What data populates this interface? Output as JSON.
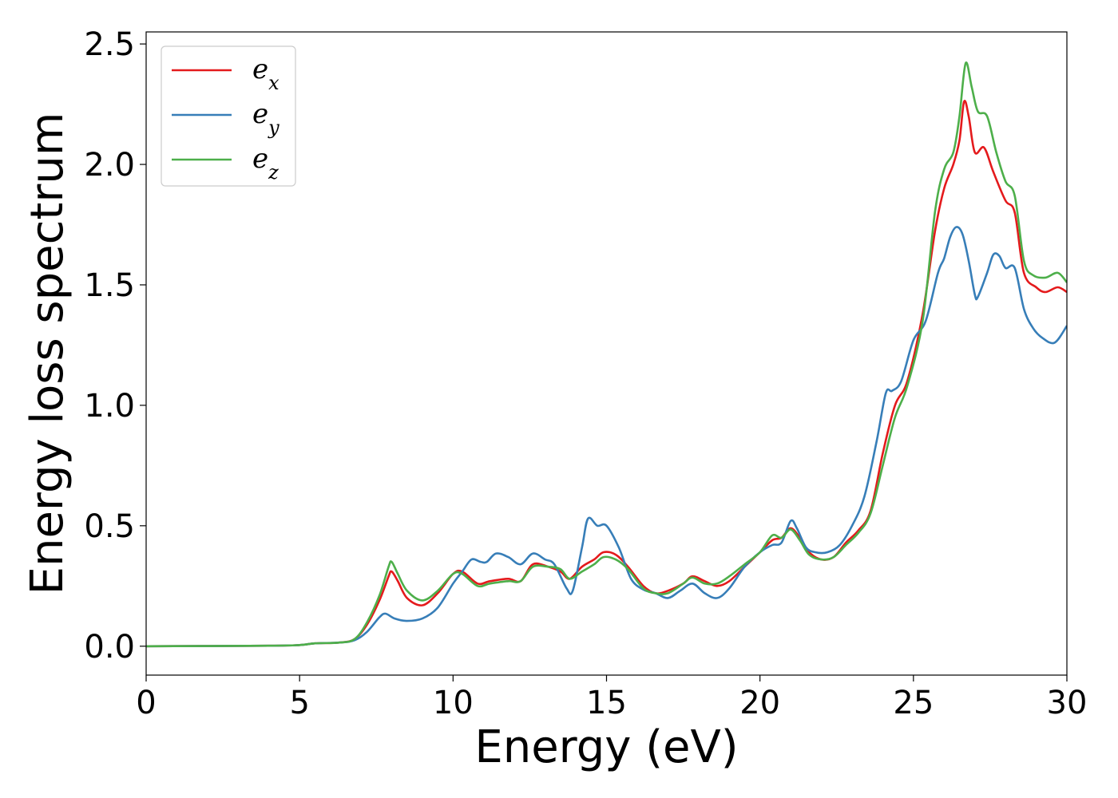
{
  "chart_data": {
    "type": "line",
    "title": "",
    "xlabel": "Energy (eV)",
    "ylabel": "Energy loss spectrum",
    "xlim": [
      0,
      30
    ],
    "ylim": [
      -0.12,
      2.55
    ],
    "xticks": [
      0,
      5,
      10,
      15,
      20,
      25,
      30
    ],
    "xtick_labels": [
      "0",
      "5",
      "10",
      "15",
      "20",
      "25",
      "30"
    ],
    "yticks": [
      0.0,
      0.5,
      1.0,
      1.5,
      2.0,
      2.5
    ],
    "ytick_labels": [
      "0.0",
      "0.5",
      "1.0",
      "1.5",
      "2.0",
      "2.5"
    ],
    "grid": false,
    "legend_position": "top-left",
    "series": [
      {
        "name": "e_x",
        "base": "e",
        "sub": "x",
        "color": "#e41a1c",
        "points": [
          [
            0,
            0
          ],
          [
            4,
            0.002
          ],
          [
            5,
            0.005
          ],
          [
            5.5,
            0.012
          ],
          [
            6.3,
            0.015
          ],
          [
            6.8,
            0.03
          ],
          [
            7.2,
            0.09
          ],
          [
            7.6,
            0.19
          ],
          [
            7.9,
            0.29
          ],
          [
            8.0,
            0.31
          ],
          [
            8.2,
            0.27
          ],
          [
            8.5,
            0.2
          ],
          [
            9.0,
            0.17
          ],
          [
            9.5,
            0.22
          ],
          [
            10.0,
            0.3
          ],
          [
            10.3,
            0.31
          ],
          [
            10.8,
            0.26
          ],
          [
            11.2,
            0.27
          ],
          [
            11.8,
            0.28
          ],
          [
            12.2,
            0.27
          ],
          [
            12.6,
            0.34
          ],
          [
            13.1,
            0.33
          ],
          [
            13.5,
            0.31
          ],
          [
            13.8,
            0.28
          ],
          [
            14.2,
            0.33
          ],
          [
            14.6,
            0.36
          ],
          [
            14.9,
            0.39
          ],
          [
            15.3,
            0.38
          ],
          [
            15.7,
            0.33
          ],
          [
            16.2,
            0.25
          ],
          [
            16.6,
            0.22
          ],
          [
            17.0,
            0.23
          ],
          [
            17.5,
            0.26
          ],
          [
            17.8,
            0.29
          ],
          [
            18.2,
            0.27
          ],
          [
            18.6,
            0.25
          ],
          [
            19.0,
            0.27
          ],
          [
            19.5,
            0.33
          ],
          [
            20.0,
            0.39
          ],
          [
            20.4,
            0.44
          ],
          [
            20.7,
            0.45
          ],
          [
            21.0,
            0.49
          ],
          [
            21.3,
            0.45
          ],
          [
            21.6,
            0.39
          ],
          [
            22.0,
            0.36
          ],
          [
            22.4,
            0.37
          ],
          [
            22.8,
            0.43
          ],
          [
            23.2,
            0.48
          ],
          [
            23.6,
            0.56
          ],
          [
            24.0,
            0.8
          ],
          [
            24.4,
            1.0
          ],
          [
            24.8,
            1.1
          ],
          [
            25.3,
            1.38
          ],
          [
            25.7,
            1.72
          ],
          [
            26.0,
            1.9
          ],
          [
            26.3,
            2.0
          ],
          [
            26.5,
            2.1
          ],
          [
            26.65,
            2.26
          ],
          [
            26.8,
            2.2
          ],
          [
            27.0,
            2.05
          ],
          [
            27.3,
            2.07
          ],
          [
            27.6,
            1.97
          ],
          [
            28.0,
            1.85
          ],
          [
            28.3,
            1.8
          ],
          [
            28.6,
            1.55
          ],
          [
            29.0,
            1.49
          ],
          [
            29.3,
            1.47
          ],
          [
            29.7,
            1.49
          ],
          [
            30.0,
            1.47
          ]
        ]
      },
      {
        "name": "e_y",
        "base": "e",
        "sub": "y",
        "color": "#377eb8",
        "points": [
          [
            0,
            0
          ],
          [
            4,
            0.002
          ],
          [
            5,
            0.005
          ],
          [
            5.5,
            0.012
          ],
          [
            6.3,
            0.015
          ],
          [
            6.8,
            0.025
          ],
          [
            7.2,
            0.06
          ],
          [
            7.6,
            0.12
          ],
          [
            7.8,
            0.135
          ],
          [
            8.1,
            0.115
          ],
          [
            8.5,
            0.105
          ],
          [
            9.0,
            0.115
          ],
          [
            9.5,
            0.16
          ],
          [
            10.0,
            0.26
          ],
          [
            10.3,
            0.31
          ],
          [
            10.6,
            0.36
          ],
          [
            10.9,
            0.35
          ],
          [
            11.1,
            0.35
          ],
          [
            11.4,
            0.385
          ],
          [
            11.8,
            0.37
          ],
          [
            12.2,
            0.34
          ],
          [
            12.6,
            0.385
          ],
          [
            13.0,
            0.36
          ],
          [
            13.3,
            0.34
          ],
          [
            13.7,
            0.24
          ],
          [
            13.9,
            0.23
          ],
          [
            14.2,
            0.41
          ],
          [
            14.4,
            0.53
          ],
          [
            14.7,
            0.5
          ],
          [
            15.0,
            0.5
          ],
          [
            15.4,
            0.41
          ],
          [
            15.8,
            0.28
          ],
          [
            16.2,
            0.235
          ],
          [
            16.6,
            0.22
          ],
          [
            17.0,
            0.2
          ],
          [
            17.4,
            0.23
          ],
          [
            17.8,
            0.26
          ],
          [
            18.2,
            0.22
          ],
          [
            18.6,
            0.2
          ],
          [
            19.0,
            0.24
          ],
          [
            19.5,
            0.33
          ],
          [
            20.0,
            0.39
          ],
          [
            20.4,
            0.42
          ],
          [
            20.7,
            0.43
          ],
          [
            21.0,
            0.52
          ],
          [
            21.2,
            0.49
          ],
          [
            21.5,
            0.41
          ],
          [
            21.8,
            0.39
          ],
          [
            22.2,
            0.39
          ],
          [
            22.6,
            0.42
          ],
          [
            23.0,
            0.5
          ],
          [
            23.4,
            0.62
          ],
          [
            23.8,
            0.85
          ],
          [
            24.1,
            1.05
          ],
          [
            24.3,
            1.06
          ],
          [
            24.6,
            1.1
          ],
          [
            25.0,
            1.27
          ],
          [
            25.4,
            1.35
          ],
          [
            25.8,
            1.55
          ],
          [
            26.0,
            1.61
          ],
          [
            26.2,
            1.7
          ],
          [
            26.4,
            1.74
          ],
          [
            26.6,
            1.71
          ],
          [
            26.8,
            1.6
          ],
          [
            27.0,
            1.46
          ],
          [
            27.1,
            1.45
          ],
          [
            27.4,
            1.55
          ],
          [
            27.6,
            1.625
          ],
          [
            27.8,
            1.62
          ],
          [
            28.0,
            1.57
          ],
          [
            28.3,
            1.57
          ],
          [
            28.6,
            1.4
          ],
          [
            28.9,
            1.32
          ],
          [
            29.2,
            1.28
          ],
          [
            29.6,
            1.26
          ],
          [
            30.0,
            1.33
          ]
        ]
      },
      {
        "name": "e_z",
        "base": "e",
        "sub": "z",
        "color": "#4daf4a",
        "points": [
          [
            0,
            0
          ],
          [
            4,
            0.002
          ],
          [
            5,
            0.005
          ],
          [
            5.5,
            0.012
          ],
          [
            6.3,
            0.015
          ],
          [
            6.8,
            0.03
          ],
          [
            7.2,
            0.1
          ],
          [
            7.6,
            0.21
          ],
          [
            7.9,
            0.33
          ],
          [
            8.0,
            0.35
          ],
          [
            8.2,
            0.3
          ],
          [
            8.5,
            0.23
          ],
          [
            9.0,
            0.19
          ],
          [
            9.5,
            0.23
          ],
          [
            10.0,
            0.3
          ],
          [
            10.3,
            0.3
          ],
          [
            10.8,
            0.25
          ],
          [
            11.2,
            0.26
          ],
          [
            11.8,
            0.27
          ],
          [
            12.2,
            0.27
          ],
          [
            12.6,
            0.33
          ],
          [
            13.1,
            0.33
          ],
          [
            13.5,
            0.32
          ],
          [
            13.8,
            0.28
          ],
          [
            14.2,
            0.31
          ],
          [
            14.6,
            0.34
          ],
          [
            14.9,
            0.37
          ],
          [
            15.3,
            0.36
          ],
          [
            15.7,
            0.32
          ],
          [
            16.2,
            0.24
          ],
          [
            16.6,
            0.22
          ],
          [
            17.0,
            0.22
          ],
          [
            17.5,
            0.26
          ],
          [
            17.8,
            0.285
          ],
          [
            18.2,
            0.26
          ],
          [
            18.6,
            0.26
          ],
          [
            19.0,
            0.29
          ],
          [
            19.5,
            0.34
          ],
          [
            20.0,
            0.39
          ],
          [
            20.4,
            0.46
          ],
          [
            20.7,
            0.45
          ],
          [
            21.0,
            0.485
          ],
          [
            21.3,
            0.44
          ],
          [
            21.6,
            0.38
          ],
          [
            22.0,
            0.36
          ],
          [
            22.4,
            0.37
          ],
          [
            22.8,
            0.42
          ],
          [
            23.2,
            0.47
          ],
          [
            23.6,
            0.55
          ],
          [
            24.0,
            0.75
          ],
          [
            24.4,
            0.95
          ],
          [
            24.8,
            1.08
          ],
          [
            25.3,
            1.35
          ],
          [
            25.7,
            1.8
          ],
          [
            26.0,
            1.98
          ],
          [
            26.3,
            2.05
          ],
          [
            26.5,
            2.2
          ],
          [
            26.7,
            2.42
          ],
          [
            26.9,
            2.32
          ],
          [
            27.1,
            2.22
          ],
          [
            27.4,
            2.2
          ],
          [
            27.7,
            2.05
          ],
          [
            28.0,
            1.93
          ],
          [
            28.3,
            1.87
          ],
          [
            28.6,
            1.6
          ],
          [
            28.9,
            1.54
          ],
          [
            29.3,
            1.53
          ],
          [
            29.7,
            1.55
          ],
          [
            30.0,
            1.51
          ]
        ]
      }
    ]
  }
}
